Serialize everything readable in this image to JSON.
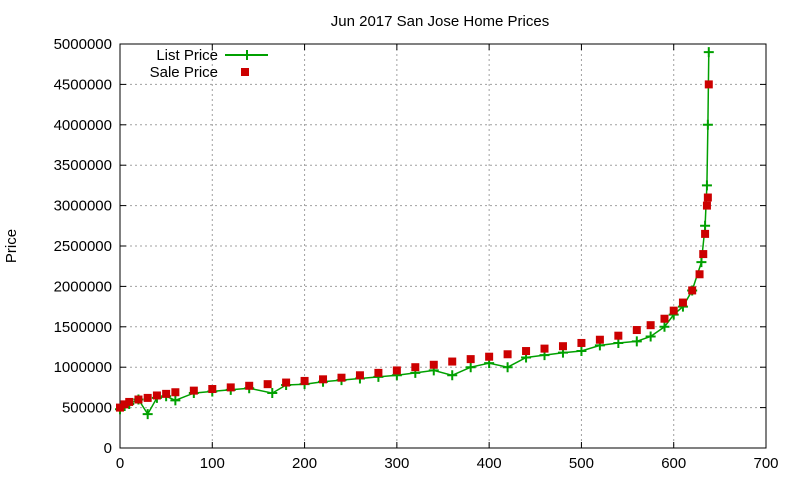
{
  "chart_data": {
    "type": "line",
    "title": "Jun 2017 San Jose Home Prices",
    "xlabel": "",
    "ylabel": "Price",
    "xlim": [
      0,
      700
    ],
    "ylim": [
      0,
      5000000
    ],
    "xticks": [
      0,
      100,
      200,
      300,
      400,
      500,
      600,
      700
    ],
    "yticks": [
      0,
      500000,
      1000000,
      1500000,
      2000000,
      2500000,
      3000000,
      3500000,
      4000000,
      4500000,
      5000000
    ],
    "grid": true,
    "legend_position": "top-left",
    "series": [
      {
        "name": "List Price",
        "style": "line-with-plus-markers",
        "color": "#00a000",
        "points": [
          [
            0,
            480000
          ],
          [
            5,
            520000
          ],
          [
            10,
            545000
          ],
          [
            20,
            600000
          ],
          [
            30,
            420000
          ],
          [
            40,
            620000
          ],
          [
            50,
            640000
          ],
          [
            60,
            590000
          ],
          [
            80,
            680000
          ],
          [
            100,
            700000
          ],
          [
            120,
            720000
          ],
          [
            140,
            740000
          ],
          [
            165,
            680000
          ],
          [
            180,
            780000
          ],
          [
            200,
            790000
          ],
          [
            220,
            820000
          ],
          [
            240,
            840000
          ],
          [
            260,
            860000
          ],
          [
            280,
            880000
          ],
          [
            300,
            900000
          ],
          [
            320,
            930000
          ],
          [
            340,
            960000
          ],
          [
            360,
            900000
          ],
          [
            380,
            1000000
          ],
          [
            400,
            1050000
          ],
          [
            420,
            1000000
          ],
          [
            440,
            1120000
          ],
          [
            460,
            1150000
          ],
          [
            480,
            1180000
          ],
          [
            500,
            1200000
          ],
          [
            520,
            1270000
          ],
          [
            540,
            1300000
          ],
          [
            560,
            1320000
          ],
          [
            575,
            1380000
          ],
          [
            590,
            1500000
          ],
          [
            600,
            1650000
          ],
          [
            610,
            1750000
          ],
          [
            620,
            1950000
          ],
          [
            630,
            2300000
          ],
          [
            634,
            2750000
          ],
          [
            636,
            3250000
          ],
          [
            637,
            4000000
          ],
          [
            638,
            4900000
          ]
        ]
      },
      {
        "name": "Sale Price",
        "style": "square-markers",
        "color": "#cc0000",
        "points": [
          [
            0,
            500000
          ],
          [
            5,
            540000
          ],
          [
            10,
            570000
          ],
          [
            20,
            600000
          ],
          [
            30,
            620000
          ],
          [
            40,
            650000
          ],
          [
            50,
            670000
          ],
          [
            60,
            690000
          ],
          [
            80,
            710000
          ],
          [
            100,
            730000
          ],
          [
            120,
            750000
          ],
          [
            140,
            770000
          ],
          [
            160,
            790000
          ],
          [
            180,
            810000
          ],
          [
            200,
            830000
          ],
          [
            220,
            850000
          ],
          [
            240,
            870000
          ],
          [
            260,
            900000
          ],
          [
            280,
            930000
          ],
          [
            300,
            960000
          ],
          [
            320,
            1000000
          ],
          [
            340,
            1030000
          ],
          [
            360,
            1070000
          ],
          [
            380,
            1100000
          ],
          [
            400,
            1130000
          ],
          [
            420,
            1160000
          ],
          [
            440,
            1200000
          ],
          [
            460,
            1230000
          ],
          [
            480,
            1260000
          ],
          [
            500,
            1300000
          ],
          [
            520,
            1340000
          ],
          [
            540,
            1390000
          ],
          [
            560,
            1460000
          ],
          [
            575,
            1520000
          ],
          [
            590,
            1600000
          ],
          [
            600,
            1700000
          ],
          [
            610,
            1800000
          ],
          [
            620,
            1950000
          ],
          [
            628,
            2150000
          ],
          [
            632,
            2400000
          ],
          [
            634,
            2650000
          ],
          [
            636,
            3000000
          ],
          [
            637,
            3100000
          ],
          [
            638,
            4500000
          ]
        ]
      }
    ]
  }
}
